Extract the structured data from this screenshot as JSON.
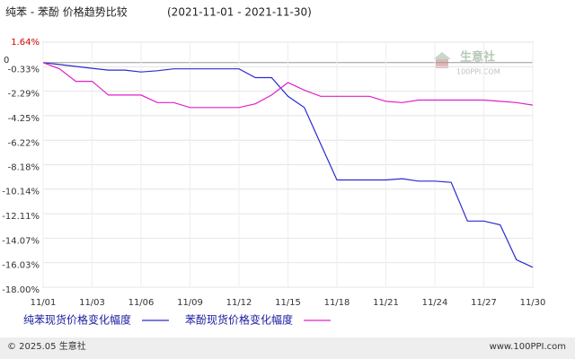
{
  "chart_data": {
    "type": "line",
    "title": "纯苯 - 苯酚 价格趋势比较",
    "subtitle": "(2021-11-01 - 2021-11-30)",
    "categories": [
      "11/01",
      null,
      null,
      "11/03",
      null,
      null,
      "11/06",
      null,
      null,
      "11/09",
      null,
      null,
      "11/12",
      null,
      null,
      "11/15",
      null,
      null,
      "11/18",
      null,
      null,
      "11/21",
      null,
      null,
      "11/24",
      null,
      null,
      "11/27",
      null,
      null,
      "11/30"
    ],
    "series": [
      {
        "name": "纯苯现货价格变化幅度",
        "color": "#2b2bd0",
        "values": [
          0,
          -0.15,
          -0.3,
          -0.45,
          -0.6,
          -0.6,
          -0.75,
          -0.65,
          -0.5,
          -0.5,
          -0.5,
          -0.5,
          -0.5,
          -1.2,
          -1.2,
          -2.7,
          -3.6,
          -6.5,
          -9.4,
          -9.4,
          -9.4,
          -9.4,
          -9.3,
          -9.5,
          -9.5,
          -9.6,
          -12.7,
          -12.7,
          -13.0,
          -15.8,
          -16.4
        ]
      },
      {
        "name": "苯酚现货价格变化幅度",
        "color": "#e020c8",
        "values": [
          0,
          -0.5,
          -1.5,
          -1.5,
          -2.6,
          -2.6,
          -2.6,
          -3.2,
          -3.2,
          -3.6,
          -3.6,
          -3.6,
          -3.6,
          -3.3,
          -2.6,
          -1.6,
          -2.2,
          -2.7,
          -2.7,
          -2.7,
          -2.7,
          -3.1,
          -3.2,
          -3.0,
          -3.0,
          -3.0,
          -3.0,
          -3.0,
          -3.1,
          -3.2,
          -3.4
        ]
      }
    ],
    "ylim": [
      -18,
      1.64
    ],
    "yticks": [
      {
        "value": 1.64,
        "label": "1.64%"
      },
      {
        "value": -0.33,
        "label": "-0.33%"
      },
      {
        "value": -2.29,
        "label": "-2.29%"
      },
      {
        "value": -4.25,
        "label": "-4.25%"
      },
      {
        "value": -6.22,
        "label": "-6.22%"
      },
      {
        "value": -8.18,
        "label": "-8.18%"
      },
      {
        "value": -10.14,
        "label": "-10.14%"
      },
      {
        "value": -12.11,
        "label": "-12.11%"
      },
      {
        "value": -14.07,
        "label": "-14.07%"
      },
      {
        "value": -16.03,
        "label": "-16.03%"
      },
      {
        "value": -18,
        "label": "-18.00%"
      }
    ],
    "zero_tick": 0,
    "grid": true,
    "watermark": {
      "name": "生意社",
      "site": "100PPI.COM"
    },
    "footer": {
      "left": "© 2025.05 生意社",
      "right": "www.100PPI.com"
    }
  }
}
